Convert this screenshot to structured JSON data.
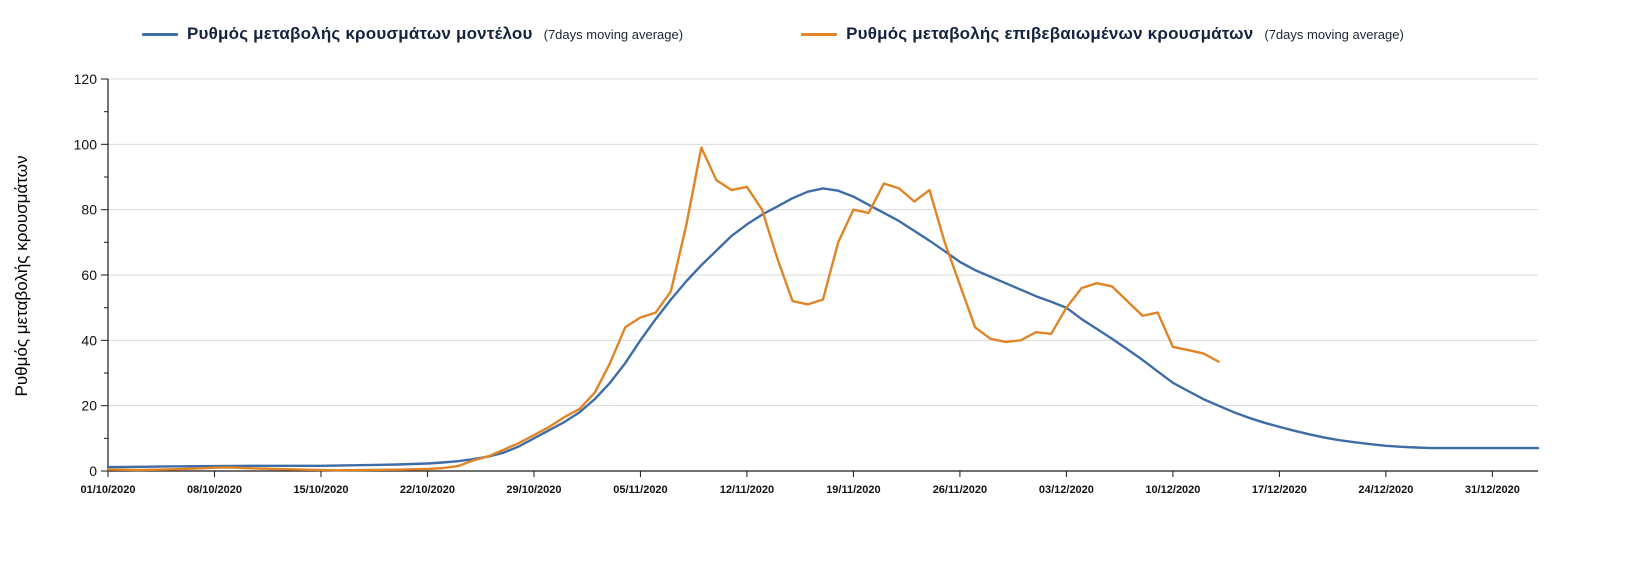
{
  "legend": {
    "items": [
      {
        "id": "model",
        "label": "Ρυθμός μεταβολής κρουσμάτων μοντέλου",
        "suffix": "(7days moving average)",
        "color": "#3e6da6"
      },
      {
        "id": "confirmed",
        "label": "Ρυθμός μεταβολής επιβεβαιωμένων κρουσμάτων",
        "suffix": "(7days moving average)",
        "color": "#e08527"
      }
    ]
  },
  "chart_data": {
    "type": "line",
    "title": "",
    "ylabel": "Ρυθμός μεταβολής κρουσμάτων",
    "xlabel": "",
    "ylim": [
      0,
      120
    ],
    "ytick_interval": 20,
    "yminor_interval": 10,
    "ytick_labels": [
      "0",
      "20",
      "40",
      "60",
      "80",
      "100",
      "120"
    ],
    "grid": true,
    "legend_position": "top",
    "x_unit": "days since 01/10/2020",
    "x_domain": [
      0,
      94
    ],
    "x_ticks": [
      {
        "day": 0,
        "label": "01/10/2020"
      },
      {
        "day": 7,
        "label": "08/10/2020"
      },
      {
        "day": 14,
        "label": "15/10/2020"
      },
      {
        "day": 21,
        "label": "22/10/2020"
      },
      {
        "day": 28,
        "label": "29/10/2020"
      },
      {
        "day": 35,
        "label": "05/11/2020"
      },
      {
        "day": 42,
        "label": "12/11/2020"
      },
      {
        "day": 49,
        "label": "19/11/2020"
      },
      {
        "day": 56,
        "label": "26/11/2020"
      },
      {
        "day": 63,
        "label": "03/12/2020"
      },
      {
        "day": 70,
        "label": "10/12/2020"
      },
      {
        "day": 77,
        "label": "17/12/2020"
      },
      {
        "day": 84,
        "label": "24/12/2020"
      },
      {
        "day": 91,
        "label": "31/12/2020"
      }
    ],
    "series": [
      {
        "name": "Ρυθμός μεταβολής κρουσμάτων μοντέλου (7days moving average)",
        "color": "#3e6da6",
        "points": [
          [
            0,
            1.2
          ],
          [
            2,
            1.3
          ],
          [
            4,
            1.4
          ],
          [
            7,
            1.5
          ],
          [
            10,
            1.6
          ],
          [
            14,
            1.6
          ],
          [
            17,
            1.8
          ],
          [
            19,
            2
          ],
          [
            21,
            2.3
          ],
          [
            22,
            2.6
          ],
          [
            23,
            3
          ],
          [
            24,
            3.6
          ],
          [
            25,
            4.4
          ],
          [
            26,
            5.6
          ],
          [
            27,
            7.5
          ],
          [
            28,
            10
          ],
          [
            29,
            12.5
          ],
          [
            30,
            15
          ],
          [
            31,
            18
          ],
          [
            32,
            22
          ],
          [
            33,
            27
          ],
          [
            34,
            33
          ],
          [
            35,
            40
          ],
          [
            36,
            46.5
          ],
          [
            37,
            52.5
          ],
          [
            38,
            58
          ],
          [
            39,
            63
          ],
          [
            40,
            67.5
          ],
          [
            41,
            72
          ],
          [
            42,
            75.5
          ],
          [
            43,
            78.5
          ],
          [
            44,
            81
          ],
          [
            45,
            83.5
          ],
          [
            46,
            85.5
          ],
          [
            47,
            86.5
          ],
          [
            48,
            85.8
          ],
          [
            49,
            84
          ],
          [
            50,
            81.5
          ],
          [
            51,
            79
          ],
          [
            52,
            76.5
          ],
          [
            53,
            73.5
          ],
          [
            54,
            70.5
          ],
          [
            55,
            67.3
          ],
          [
            56,
            64
          ],
          [
            57,
            61.5
          ],
          [
            58,
            59.5
          ],
          [
            59,
            57.5
          ],
          [
            60,
            55.5
          ],
          [
            61,
            53.5
          ],
          [
            62,
            51.8
          ],
          [
            63,
            50
          ],
          [
            64,
            46.5
          ],
          [
            65,
            43.5
          ],
          [
            66,
            40.5
          ],
          [
            67,
            37.3
          ],
          [
            68,
            34
          ],
          [
            69,
            30.5
          ],
          [
            70,
            27
          ],
          [
            71,
            24.5
          ],
          [
            72,
            22
          ],
          [
            73,
            20
          ],
          [
            74,
            18
          ],
          [
            75,
            16.3
          ],
          [
            76,
            14.8
          ],
          [
            77,
            13.5
          ],
          [
            78,
            12.3
          ],
          [
            79,
            11.2
          ],
          [
            80,
            10.2
          ],
          [
            81,
            9.4
          ],
          [
            82,
            8.8
          ],
          [
            83,
            8.2
          ],
          [
            84,
            7.7
          ],
          [
            85,
            7.4
          ],
          [
            86,
            7.2
          ],
          [
            87,
            7
          ],
          [
            88,
            7
          ],
          [
            89,
            7
          ],
          [
            90,
            7
          ],
          [
            91,
            7
          ],
          [
            92,
            7
          ],
          [
            93,
            7
          ],
          [
            94,
            7
          ]
        ]
      },
      {
        "name": "Ρυθμός μεταβολής επιβεβαιωμένων κρουσμάτων (7days moving average)",
        "color": "#e08527",
        "points": [
          [
            0,
            0.5
          ],
          [
            2,
            0.3
          ],
          [
            4,
            0.5
          ],
          [
            6,
            0.8
          ],
          [
            7,
            1
          ],
          [
            8,
            1.1
          ],
          [
            9,
            0.9
          ],
          [
            11,
            0.6
          ],
          [
            13,
            0.4
          ],
          [
            15,
            0.2
          ],
          [
            17,
            0.3
          ],
          [
            19,
            0.4
          ],
          [
            21,
            0.6
          ],
          [
            22,
            0.9
          ],
          [
            23,
            1.5
          ],
          [
            24,
            3.2
          ],
          [
            25,
            4.5
          ],
          [
            26,
            6.5
          ],
          [
            27,
            8.5
          ],
          [
            28,
            11
          ],
          [
            29,
            13.5
          ],
          [
            30,
            16.5
          ],
          [
            31,
            19
          ],
          [
            32,
            24
          ],
          [
            33,
            33
          ],
          [
            34,
            44
          ],
          [
            35,
            47
          ],
          [
            36,
            48.5
          ],
          [
            37,
            55
          ],
          [
            38,
            75
          ],
          [
            39,
            99
          ],
          [
            40,
            89
          ],
          [
            41,
            86
          ],
          [
            42,
            87
          ],
          [
            43,
            80
          ],
          [
            44,
            65
          ],
          [
            45,
            52
          ],
          [
            46,
            51
          ],
          [
            47,
            52.5
          ],
          [
            48,
            70
          ],
          [
            49,
            80
          ],
          [
            50,
            79
          ],
          [
            51,
            88
          ],
          [
            52,
            86.5
          ],
          [
            53,
            82.5
          ],
          [
            54,
            86
          ],
          [
            55,
            70
          ],
          [
            56,
            57
          ],
          [
            57,
            44
          ],
          [
            58,
            40.5
          ],
          [
            59,
            39.5
          ],
          [
            60,
            40
          ],
          [
            61,
            42.5
          ],
          [
            62,
            42
          ],
          [
            63,
            50
          ],
          [
            64,
            56
          ],
          [
            65,
            57.5
          ],
          [
            66,
            56.5
          ],
          [
            67,
            52
          ],
          [
            68,
            47.5
          ],
          [
            69,
            48.5
          ],
          [
            70,
            38
          ],
          [
            71,
            37
          ],
          [
            72,
            36
          ],
          [
            73,
            33.5
          ]
        ]
      }
    ]
  }
}
